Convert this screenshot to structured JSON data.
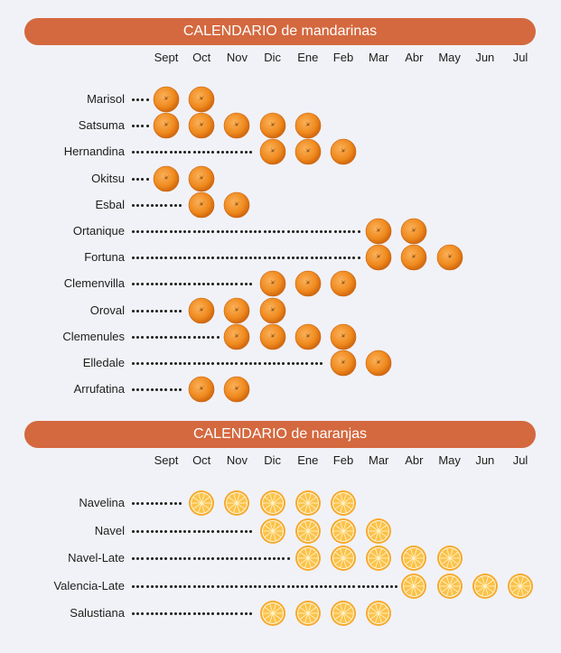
{
  "chart_data": [
    {
      "type": "table",
      "title": "CALENDARIO de mandarinas",
      "categories": [
        "Sept",
        "Oct",
        "Nov",
        "Dic",
        "Ene",
        "Feb",
        "Mar",
        "Abr",
        "May",
        "Jun",
        "Jul"
      ],
      "icon": "whole-mandarin-icon",
      "series": [
        {
          "name": "Marisol",
          "months": [
            "Sept",
            "Oct"
          ]
        },
        {
          "name": "Satsuma",
          "months": [
            "Sept",
            "Oct",
            "Nov",
            "Dic",
            "Ene"
          ]
        },
        {
          "name": "Hernandina",
          "months": [
            "Dic",
            "Ene",
            "Feb"
          ]
        },
        {
          "name": "Okitsu",
          "months": [
            "Sept",
            "Oct"
          ]
        },
        {
          "name": "Esbal",
          "months": [
            "Oct",
            "Nov"
          ]
        },
        {
          "name": "Ortanique",
          "months": [
            "Mar",
            "Abr"
          ]
        },
        {
          "name": "Fortuna",
          "months": [
            "Mar",
            "Abr",
            "May"
          ]
        },
        {
          "name": "Clemenvilla",
          "months": [
            "Dic",
            "Ene",
            "Feb"
          ]
        },
        {
          "name": "Oroval",
          "months": [
            "Oct",
            "Nov",
            "Dic"
          ]
        },
        {
          "name": "Clemenules",
          "months": [
            "Nov",
            "Dic",
            "Ene",
            "Feb"
          ]
        },
        {
          "name": "Elledale",
          "months": [
            "Feb",
            "Mar"
          ]
        },
        {
          "name": "Arrufatina",
          "months": [
            "Oct",
            "Nov"
          ]
        }
      ]
    },
    {
      "type": "table",
      "title": "CALENDARIO de naranjas",
      "categories": [
        "Sept",
        "Oct",
        "Nov",
        "Dic",
        "Ene",
        "Feb",
        "Mar",
        "Abr",
        "May",
        "Jun",
        "Jul"
      ],
      "icon": "orange-slice-icon",
      "series": [
        {
          "name": "Navelina",
          "months": [
            "Oct",
            "Nov",
            "Dic",
            "Ene",
            "Feb"
          ]
        },
        {
          "name": "Navel",
          "months": [
            "Dic",
            "Ene",
            "Feb",
            "Mar"
          ]
        },
        {
          "name": "Navel-Late",
          "months": [
            "Ene",
            "Feb",
            "Mar",
            "Abr",
            "May"
          ]
        },
        {
          "name": "Valencia-Late",
          "months": [
            "Abr",
            "May",
            "Jun",
            "Jul"
          ]
        },
        {
          "name": "Salustiana",
          "months": [
            "Dic",
            "Ene",
            "Feb",
            "Mar"
          ]
        }
      ]
    }
  ],
  "colors": {
    "banner": "#d4683f",
    "mandarin": "#ef8a1e",
    "orange_rind": "#f6a92d",
    "orange_flesh": "#fbc24a",
    "background": "#f1f2f7",
    "text": "#1d1d1b"
  }
}
